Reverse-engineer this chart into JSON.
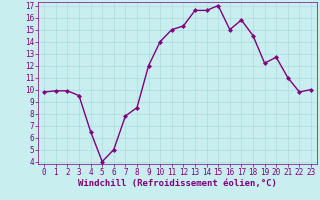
{
  "x": [
    0,
    1,
    2,
    3,
    4,
    5,
    6,
    7,
    8,
    9,
    10,
    11,
    12,
    13,
    14,
    15,
    16,
    17,
    18,
    19,
    20,
    21,
    22,
    23
  ],
  "y": [
    9.8,
    9.9,
    9.9,
    9.5,
    6.5,
    4.0,
    5.0,
    7.8,
    8.5,
    12.0,
    14.0,
    15.0,
    15.3,
    16.6,
    16.6,
    17.0,
    15.0,
    15.8,
    14.5,
    12.2,
    12.7,
    11.0,
    9.8,
    10.0
  ],
  "line_color": "#800080",
  "marker": "D",
  "marker_size": 2,
  "background_color": "#c8eef0",
  "grid_color": "#aadddd",
  "xlabel": "Windchill (Refroidissement éolien,°C)",
  "xlabel_color": "#800080",
  "ylim_min": 3.8,
  "ylim_max": 17.3,
  "xlim_min": -0.5,
  "xlim_max": 23.5,
  "yticks": [
    4,
    5,
    6,
    7,
    8,
    9,
    10,
    11,
    12,
    13,
    14,
    15,
    16,
    17
  ],
  "xticks": [
    0,
    1,
    2,
    3,
    4,
    5,
    6,
    7,
    8,
    9,
    10,
    11,
    12,
    13,
    14,
    15,
    16,
    17,
    18,
    19,
    20,
    21,
    22,
    23
  ],
  "tick_color": "#800080",
  "tick_fontsize": 5.5,
  "xlabel_fontsize": 6.5,
  "line_width": 1.0
}
